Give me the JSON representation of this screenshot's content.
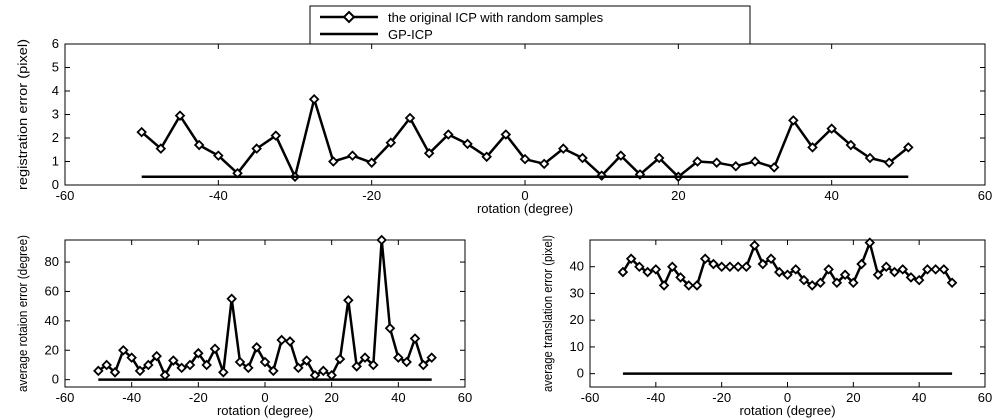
{
  "legend": {
    "entries": [
      {
        "label": "the original ICP with random samples",
        "marker": "diamond"
      },
      {
        "label": "GP-ICP",
        "marker": "none"
      }
    ],
    "placement": "top-center"
  },
  "colors": {
    "line": "#000000",
    "marker_fill": "#ffffff",
    "axes": "#000000",
    "background": "#ffffff"
  },
  "chart_data": [
    {
      "type": "line",
      "xlabel": "rotation (degree)",
      "ylabel": "registration error (pixel)",
      "xlim": [
        -60,
        60
      ],
      "ylim": [
        0,
        6
      ],
      "xticks": [
        "-60",
        "-40",
        "-20",
        "0",
        "20",
        "40",
        "60"
      ],
      "yticks": [
        "0",
        "1",
        "2",
        "3",
        "4",
        "5",
        "6"
      ],
      "grid": false,
      "x": [
        -50,
        -47.5,
        -45,
        -42.5,
        -40,
        -37.5,
        -35,
        -32.5,
        -30,
        -27.5,
        -25,
        -22.5,
        -20,
        -17.5,
        -15,
        -12.5,
        -10,
        -7.5,
        -5,
        -2.5,
        0,
        2.5,
        5,
        7.5,
        10,
        12.5,
        15,
        17.5,
        20,
        22.5,
        25,
        27.5,
        30,
        32.5,
        35,
        37.5,
        40,
        42.5,
        45,
        47.5,
        50
      ],
      "series": [
        {
          "values": [
            2.25,
            1.55,
            2.95,
            1.7,
            1.25,
            0.5,
            1.55,
            2.1,
            0.35,
            3.65,
            1.0,
            1.25,
            0.95,
            1.8,
            2.85,
            1.35,
            2.15,
            1.75,
            1.2,
            2.15,
            1.1,
            0.9,
            1.55,
            1.15,
            0.4,
            1.25,
            0.45,
            1.15,
            0.35,
            1.0,
            0.95,
            0.8,
            1.0,
            0.75,
            2.75,
            1.6,
            2.4,
            1.7,
            1.15,
            0.95,
            1.6
          ]
        },
        {
          "values": [
            0.35,
            0.35,
            0.35,
            0.35,
            0.35,
            0.35,
            0.35,
            0.35,
            0.35,
            0.35,
            0.35,
            0.35,
            0.35,
            0.35,
            0.35,
            0.35,
            0.35,
            0.35,
            0.35,
            0.35,
            0.35,
            0.35,
            0.35,
            0.35,
            0.35,
            0.35,
            0.35,
            0.35,
            0.35,
            0.35,
            0.35,
            0.35,
            0.35,
            0.35,
            0.35,
            0.35,
            0.35,
            0.35,
            0.35,
            0.35,
            0.35
          ]
        }
      ]
    },
    {
      "type": "line",
      "xlabel": "rotation (degree)",
      "ylabel": "average rotaion error (degree)",
      "xlim": [
        -60,
        60
      ],
      "ylim": [
        -5,
        95
      ],
      "xticks": [
        "-60",
        "-40",
        "-20",
        "0",
        "20",
        "40",
        "60"
      ],
      "yticks": [
        "0",
        "20",
        "40",
        "60",
        "80"
      ],
      "grid": false,
      "x": [
        -50,
        -47.5,
        -45,
        -42.5,
        -40,
        -37.5,
        -35,
        -32.5,
        -30,
        -27.5,
        -25,
        -22.5,
        -20,
        -17.5,
        -15,
        -12.5,
        -10,
        -7.5,
        -5,
        -2.5,
        0,
        2.5,
        5,
        7.5,
        10,
        12.5,
        15,
        17.5,
        20,
        22.5,
        25,
        27.5,
        30,
        32.5,
        35,
        37.5,
        40,
        42.5,
        45,
        47.5,
        50
      ],
      "series": [
        {
          "values": [
            6,
            10,
            5,
            20,
            15,
            6,
            10,
            16,
            3,
            13,
            8,
            10,
            18,
            10,
            21,
            5,
            55,
            12,
            8,
            22,
            12,
            6,
            27,
            26,
            8,
            13,
            3,
            6,
            3,
            14,
            54,
            9,
            15,
            10,
            95,
            35,
            15,
            12,
            28,
            10,
            15
          ]
        },
        {
          "values": [
            0,
            0,
            0,
            0,
            0,
            0,
            0,
            0,
            0,
            0,
            0,
            0,
            0,
            0,
            0,
            0,
            0,
            0,
            0,
            0,
            0,
            0,
            0,
            0,
            0,
            0,
            0,
            0,
            0,
            0,
            0,
            0,
            0,
            0,
            0,
            0,
            0,
            0,
            0,
            0,
            0
          ]
        }
      ]
    },
    {
      "type": "line",
      "xlabel": "rotation (degree)",
      "ylabel": "average translation error (pixel)",
      "xlim": [
        -60,
        60
      ],
      "ylim": [
        -5,
        50
      ],
      "xticks": [
        "-60",
        "-40",
        "-20",
        "0",
        "20",
        "40",
        "60"
      ],
      "yticks": [
        "0",
        "10",
        "20",
        "30",
        "40"
      ],
      "grid": false,
      "x": [
        -50,
        -47.5,
        -45,
        -42.5,
        -40,
        -37.5,
        -35,
        -32.5,
        -30,
        -27.5,
        -25,
        -22.5,
        -20,
        -17.5,
        -15,
        -12.5,
        -10,
        -7.5,
        -5,
        -2.5,
        0,
        2.5,
        5,
        7.5,
        10,
        12.5,
        15,
        17.5,
        20,
        22.5,
        25,
        27.5,
        30,
        32.5,
        35,
        37.5,
        40,
        42.5,
        45,
        47.5,
        50
      ],
      "series": [
        {
          "values": [
            38,
            43,
            40,
            38,
            39,
            33,
            40,
            36,
            33,
            33,
            43,
            41,
            40,
            40,
            40,
            40,
            48,
            41,
            43,
            38,
            37,
            39,
            35,
            33,
            34,
            39,
            34,
            37,
            34,
            41,
            49,
            37,
            40,
            38,
            39,
            36,
            35,
            39,
            39,
            39,
            34
          ]
        },
        {
          "values": [
            0,
            0,
            0,
            0,
            0,
            0,
            0,
            0,
            0,
            0,
            0,
            0,
            0,
            0,
            0,
            0,
            0,
            0,
            0,
            0,
            0,
            0,
            0,
            0,
            0,
            0,
            0,
            0,
            0,
            0,
            0,
            0,
            0,
            0,
            0,
            0,
            0,
            0,
            0,
            0,
            0
          ]
        }
      ]
    }
  ]
}
